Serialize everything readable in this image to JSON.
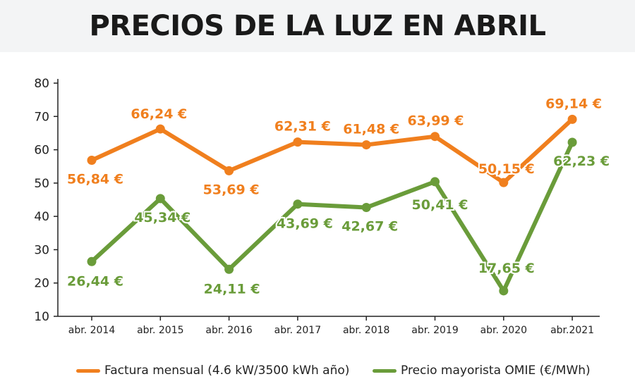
{
  "title": "PRECIOS DE LA LUZ EN ABRIL",
  "colors": {
    "factura": "#f07f1e",
    "omie": "#6a9c3a"
  },
  "chart_data": {
    "type": "line",
    "categories": [
      "abr. 2014",
      "abr. 2015",
      "abr. 2016",
      "abr. 2017",
      "abr. 2018",
      "abr. 2019",
      "abr. 2020",
      "abr.2021"
    ],
    "ylim": [
      10,
      80
    ],
    "yticks": [
      10,
      20,
      30,
      40,
      50,
      60,
      70,
      80
    ],
    "grid": false,
    "legend_position": "bottom",
    "series": [
      {
        "name": "Factura mensual (4.6 kW/3500 kWh año)",
        "values": [
          56.84,
          66.24,
          53.69,
          62.31,
          61.48,
          63.99,
          50.15,
          69.14
        ],
        "labels": [
          "56,84 €",
          "66,24 €",
          "53,69 €",
          "62,31 €",
          "61,48 €",
          "63,99 €",
          "50,15 €",
          "69,14 €"
        ]
      },
      {
        "name": "Precio mayorista OMIE (€/MWh)",
        "values": [
          26.44,
          45.34,
          24.11,
          43.69,
          42.67,
          50.41,
          17.65,
          62.23
        ],
        "labels": [
          "26,44 €",
          "45,34 €",
          "24,11 €",
          "43,69 €",
          "42,67 €",
          "50,41 €",
          "17,65 €",
          "62,23 €"
        ]
      }
    ]
  }
}
